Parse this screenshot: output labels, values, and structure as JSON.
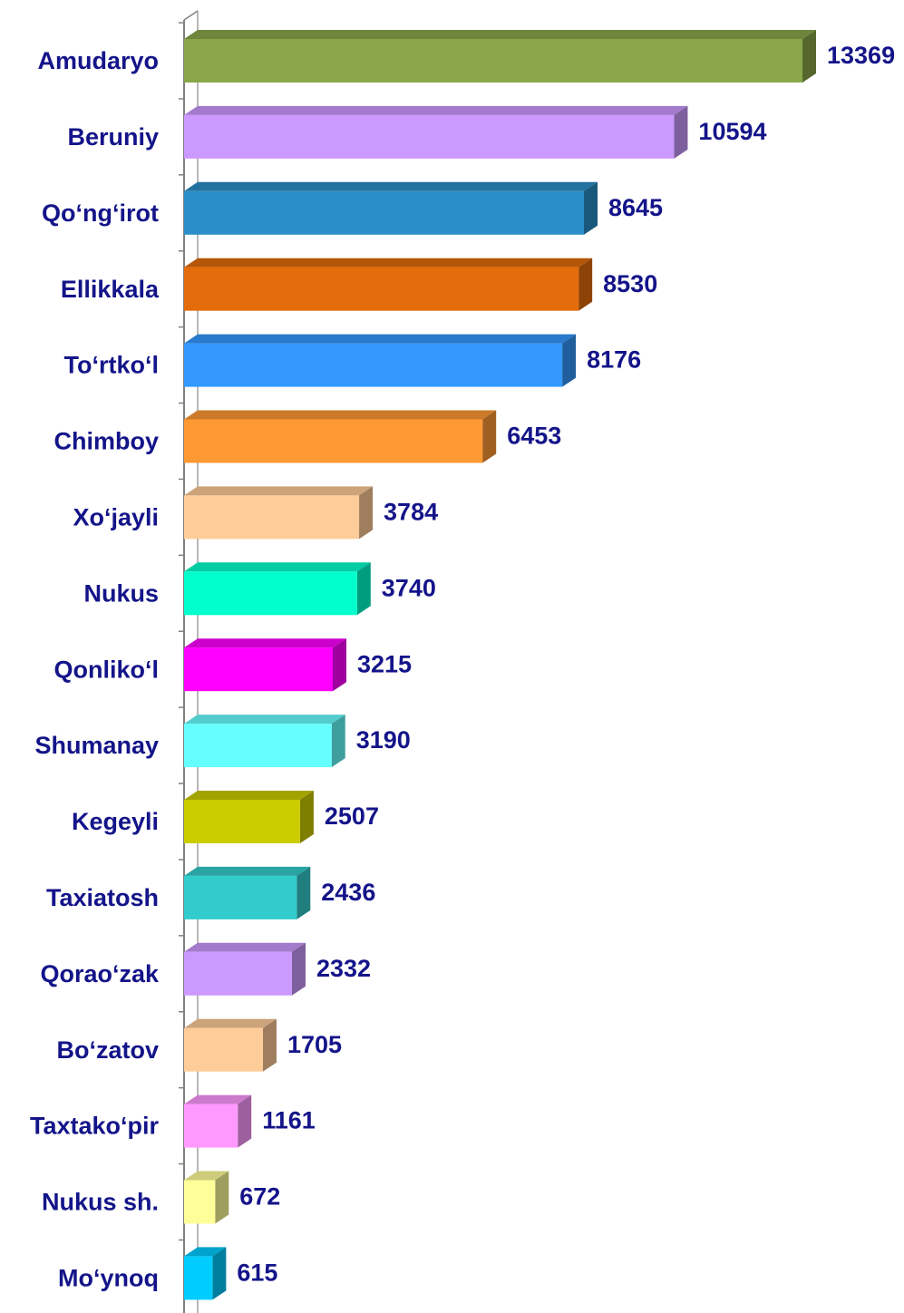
{
  "chart_data": {
    "type": "bar",
    "orientation": "horizontal",
    "categories": [
      "Amudaryo",
      "Beruniy",
      "Qo‘ng‘irot",
      "Ellikkala",
      "To‘rtko‘l",
      "Chimboy",
      "Xo‘jayli",
      "Nukus",
      "Qonliko‘l",
      "Shumanay",
      "Kegeyli",
      "Taxiatosh",
      "Qorao‘zak",
      "Bo‘zatov",
      "Taxtako‘pir",
      "Nukus sh.",
      "Mo‘ynoq"
    ],
    "values": [
      13369,
      10594,
      8645,
      8530,
      8176,
      6453,
      3784,
      3740,
      3215,
      3190,
      2507,
      2436,
      2332,
      1705,
      1161,
      672,
      615
    ],
    "colors": [
      "#8aa64a",
      "#cc99ff",
      "#2a8fc8",
      "#e46c0a",
      "#3399ff",
      "#ff9933",
      "#ffcc99",
      "#00ffcc",
      "#ff00ff",
      "#66ffff",
      "#cccc00",
      "#33cccc",
      "#cc99ff",
      "#ffcc99",
      "#ff99ff",
      "#ffff99",
      "#00ccff"
    ]
  }
}
